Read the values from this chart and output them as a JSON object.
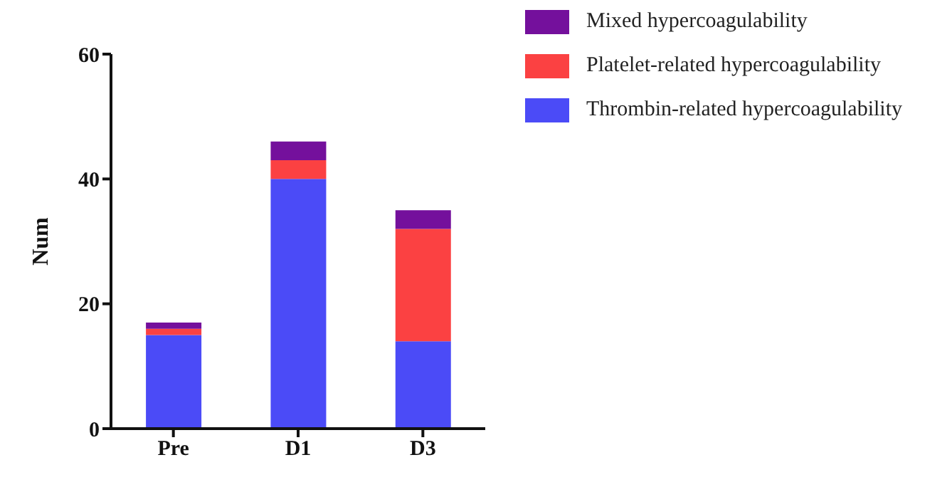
{
  "chart_data": {
    "type": "bar",
    "stacked": true,
    "ylabel": "Num",
    "categories": [
      "Pre",
      "D1",
      "D3"
    ],
    "series": [
      {
        "name": "Thrombin-related hypercoagulability",
        "color": "#4b4bf7",
        "values": [
          15,
          40,
          14
        ]
      },
      {
        "name": "Platelet-related hypercoagulability",
        "color": "#fb4142",
        "values": [
          1,
          3,
          18
        ]
      },
      {
        "name": "Mixed hypercoagulability",
        "color": "#74109c",
        "values": [
          1,
          3,
          3
        ]
      }
    ],
    "ylim": [
      0,
      60
    ],
    "yticks": [
      0,
      20,
      40,
      60
    ],
    "grid": false,
    "legend": "top right"
  }
}
